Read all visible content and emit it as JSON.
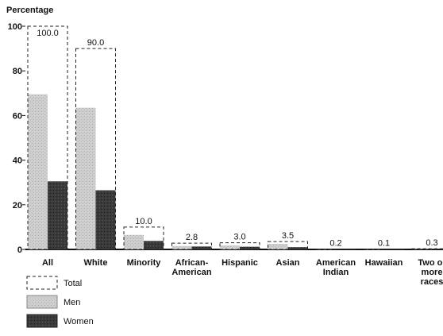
{
  "chart_data": {
    "type": "bar",
    "ylabel": "Percentage",
    "ylim": [
      0,
      100
    ],
    "yticks": [
      0,
      20,
      40,
      60,
      80,
      100
    ],
    "categories": [
      [
        "All"
      ],
      [
        "White"
      ],
      [
        "Minority"
      ],
      [
        "African-",
        "American"
      ],
      [
        "Hispanic"
      ],
      [
        "Asian"
      ],
      [
        "American",
        "Indian"
      ],
      [
        "Hawaiian"
      ],
      [
        "Two or",
        "more",
        "races"
      ]
    ],
    "series": [
      {
        "name": "Total",
        "values": [
          100.0,
          90.0,
          10.0,
          2.8,
          3.0,
          3.5,
          0.2,
          0.1,
          0.3
        ],
        "style": "dashed-outline"
      },
      {
        "name": "Men",
        "values": [
          69.5,
          63.5,
          6.5,
          1.5,
          1.8,
          2.5,
          0.1,
          0.05,
          0.15
        ],
        "color": "#c8c8c8"
      },
      {
        "name": "Women",
        "values": [
          30.5,
          26.5,
          3.8,
          1.3,
          1.2,
          1.0,
          0.1,
          0.05,
          0.15
        ],
        "color": "#3a3a3a"
      }
    ],
    "total_labels": [
      "100.0",
      "90.0",
      "10.0",
      "2.8",
      "3.0",
      "3.5",
      "0.2",
      "0.1",
      "0.3"
    ],
    "legend": {
      "placement": "bottom-left",
      "items": [
        "Total",
        "Men",
        "Women"
      ]
    },
    "grid": false
  }
}
